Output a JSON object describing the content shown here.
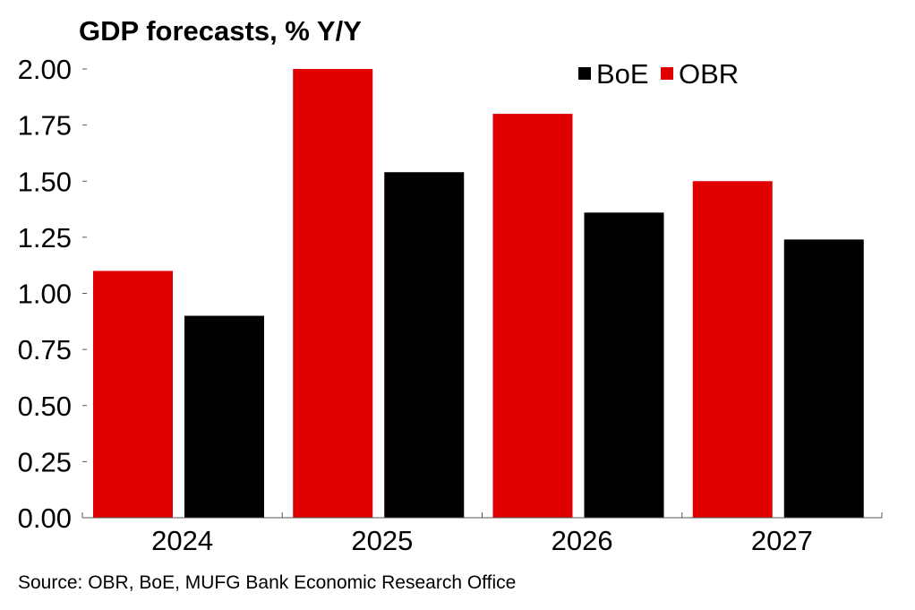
{
  "chart_data": {
    "type": "bar",
    "title": "GDP forecasts, % Y/Y",
    "categories": [
      "2024",
      "2025",
      "2026",
      "2027"
    ],
    "series": [
      {
        "name": "OBR",
        "color": "#e00000",
        "values": [
          1.1,
          2.0,
          1.8,
          1.5
        ]
      },
      {
        "name": "BoE",
        "color": "#000000",
        "values": [
          0.9,
          1.54,
          1.36,
          1.24
        ]
      }
    ],
    "legend_order": [
      "BoE",
      "OBR"
    ],
    "y_ticks": [
      "0.00",
      "0.25",
      "0.50",
      "0.75",
      "1.00",
      "1.25",
      "1.50",
      "1.75",
      "2.00"
    ],
    "ylim": [
      0,
      2
    ],
    "xlabel": "",
    "ylabel": "",
    "grid": false,
    "legend_position": "top-right",
    "source": "Source: OBR, BoE, MUFG Bank Economic Research Office"
  }
}
